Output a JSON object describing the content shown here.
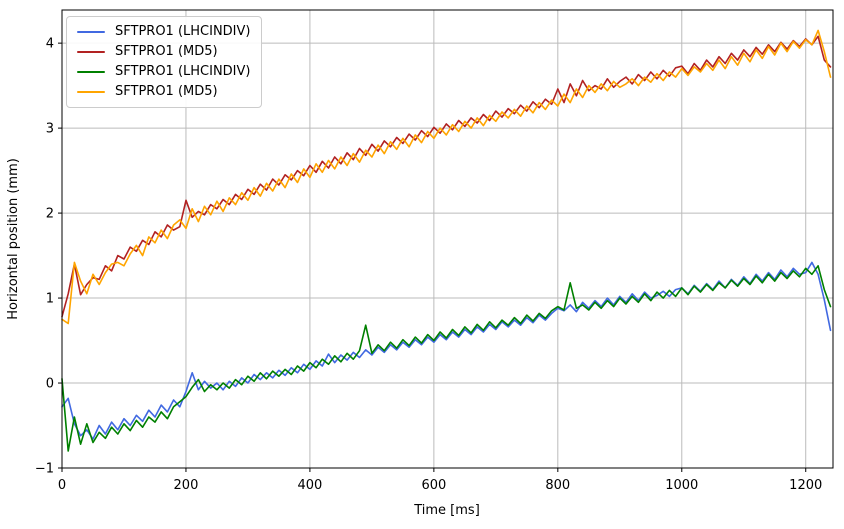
{
  "figure": {
    "background": "#ffffff",
    "text_color": "#000000",
    "spine_color": "#000000"
  },
  "chart_data": {
    "type": "line",
    "title": "",
    "xlabel": "Time [ms]",
    "ylabel": "Horizontal position (mm)",
    "xlim": [
      0,
      1244
    ],
    "ylim": [
      -1.0,
      4.39
    ],
    "xticks": [
      0,
      200,
      400,
      600,
      800,
      1000,
      1200
    ],
    "yticks": [
      -1,
      0,
      1,
      2,
      3,
      4
    ],
    "grid": true,
    "grid_color": "#bbbbbb",
    "legend_position": "upper-left",
    "x": [
      0,
      10,
      20,
      30,
      40,
      50,
      60,
      70,
      80,
      90,
      100,
      110,
      120,
      130,
      140,
      150,
      160,
      170,
      180,
      190,
      200,
      210,
      220,
      230,
      240,
      250,
      260,
      270,
      280,
      290,
      300,
      310,
      320,
      330,
      340,
      350,
      360,
      370,
      380,
      390,
      400,
      410,
      420,
      430,
      440,
      450,
      460,
      470,
      480,
      490,
      500,
      510,
      520,
      530,
      540,
      550,
      560,
      570,
      580,
      590,
      600,
      610,
      620,
      630,
      640,
      650,
      660,
      670,
      680,
      690,
      700,
      710,
      720,
      730,
      740,
      750,
      760,
      770,
      780,
      790,
      800,
      810,
      820,
      830,
      840,
      850,
      860,
      870,
      880,
      890,
      900,
      910,
      920,
      930,
      940,
      950,
      960,
      970,
      980,
      990,
      1000,
      1010,
      1020,
      1030,
      1040,
      1050,
      1060,
      1070,
      1080,
      1090,
      1100,
      1110,
      1120,
      1130,
      1140,
      1150,
      1160,
      1170,
      1180,
      1190,
      1200,
      1210,
      1220,
      1230,
      1240
    ],
    "series": [
      {
        "name": "SFTPRO1 (LHCINDIV)",
        "color": "#4169e1",
        "values": [
          -0.28,
          -0.18,
          -0.48,
          -0.62,
          -0.55,
          -0.66,
          -0.5,
          -0.6,
          -0.46,
          -0.55,
          -0.42,
          -0.5,
          -0.38,
          -0.45,
          -0.32,
          -0.4,
          -0.26,
          -0.34,
          -0.2,
          -0.28,
          -0.1,
          0.12,
          -0.08,
          0.02,
          -0.06,
          0.0,
          -0.08,
          0.02,
          -0.04,
          0.06,
          0.0,
          0.1,
          0.04,
          0.12,
          0.06,
          0.15,
          0.09,
          0.18,
          0.12,
          0.22,
          0.16,
          0.26,
          0.2,
          0.34,
          0.24,
          0.33,
          0.27,
          0.36,
          0.3,
          0.39,
          0.33,
          0.42,
          0.36,
          0.45,
          0.39,
          0.48,
          0.42,
          0.51,
          0.45,
          0.54,
          0.48,
          0.57,
          0.51,
          0.6,
          0.54,
          0.63,
          0.57,
          0.66,
          0.6,
          0.69,
          0.63,
          0.72,
          0.66,
          0.74,
          0.68,
          0.77,
          0.71,
          0.8,
          0.74,
          0.82,
          0.88,
          0.85,
          0.92,
          0.84,
          0.95,
          0.88,
          0.97,
          0.9,
          1.0,
          0.92,
          1.02,
          0.95,
          1.05,
          0.97,
          1.07,
          1.0,
          1.03,
          1.08,
          1.02,
          1.1,
          1.12,
          1.05,
          1.15,
          1.08,
          1.17,
          1.1,
          1.2,
          1.12,
          1.22,
          1.15,
          1.25,
          1.17,
          1.28,
          1.2,
          1.3,
          1.22,
          1.33,
          1.25,
          1.35,
          1.28,
          1.3,
          1.42,
          1.28,
          0.98,
          0.62
        ]
      },
      {
        "name": "SFTPRO1 (MD5)",
        "color": "#b22222",
        "values": [
          0.78,
          1.05,
          1.4,
          1.04,
          1.16,
          1.24,
          1.22,
          1.38,
          1.32,
          1.5,
          1.46,
          1.6,
          1.55,
          1.68,
          1.63,
          1.78,
          1.72,
          1.86,
          1.8,
          1.84,
          2.15,
          1.95,
          2.02,
          1.98,
          2.1,
          2.05,
          2.16,
          2.1,
          2.22,
          2.16,
          2.28,
          2.22,
          2.34,
          2.27,
          2.4,
          2.33,
          2.45,
          2.39,
          2.5,
          2.44,
          2.56,
          2.48,
          2.61,
          2.53,
          2.66,
          2.58,
          2.71,
          2.63,
          2.76,
          2.68,
          2.81,
          2.73,
          2.85,
          2.78,
          2.89,
          2.82,
          2.93,
          2.86,
          2.97,
          2.9,
          3.01,
          2.94,
          3.05,
          2.98,
          3.09,
          3.02,
          3.12,
          3.06,
          3.16,
          3.09,
          3.2,
          3.13,
          3.23,
          3.17,
          3.27,
          3.2,
          3.31,
          3.24,
          3.34,
          3.28,
          3.46,
          3.3,
          3.52,
          3.38,
          3.56,
          3.44,
          3.5,
          3.46,
          3.58,
          3.48,
          3.55,
          3.6,
          3.52,
          3.63,
          3.56,
          3.66,
          3.58,
          3.68,
          3.61,
          3.71,
          3.73,
          3.64,
          3.76,
          3.68,
          3.8,
          3.72,
          3.84,
          3.76,
          3.88,
          3.8,
          3.92,
          3.84,
          3.95,
          3.87,
          3.98,
          3.9,
          4.01,
          3.93,
          4.03,
          3.96,
          4.05,
          3.98,
          4.08,
          3.8,
          3.72
        ]
      },
      {
        "name": "SFTPRO1 (LHCINDIV)",
        "color": "#008000",
        "values": [
          0.05,
          -0.8,
          -0.4,
          -0.72,
          -0.48,
          -0.7,
          -0.58,
          -0.65,
          -0.52,
          -0.6,
          -0.48,
          -0.56,
          -0.44,
          -0.52,
          -0.4,
          -0.46,
          -0.34,
          -0.42,
          -0.28,
          -0.22,
          -0.16,
          -0.05,
          0.04,
          -0.1,
          -0.02,
          -0.08,
          0.0,
          -0.06,
          0.04,
          -0.02,
          0.08,
          0.02,
          0.12,
          0.05,
          0.14,
          0.08,
          0.16,
          0.1,
          0.2,
          0.14,
          0.24,
          0.18,
          0.28,
          0.22,
          0.32,
          0.25,
          0.35,
          0.28,
          0.38,
          0.68,
          0.35,
          0.45,
          0.38,
          0.48,
          0.41,
          0.51,
          0.44,
          0.54,
          0.47,
          0.57,
          0.5,
          0.6,
          0.53,
          0.63,
          0.56,
          0.66,
          0.59,
          0.69,
          0.62,
          0.72,
          0.65,
          0.74,
          0.68,
          0.77,
          0.7,
          0.8,
          0.73,
          0.82,
          0.76,
          0.85,
          0.9,
          0.86,
          1.18,
          0.88,
          0.92,
          0.86,
          0.95,
          0.88,
          0.97,
          0.9,
          1.0,
          0.93,
          1.02,
          0.95,
          1.05,
          0.97,
          1.07,
          1.0,
          1.09,
          1.02,
          1.12,
          1.04,
          1.14,
          1.07,
          1.16,
          1.09,
          1.18,
          1.12,
          1.21,
          1.14,
          1.23,
          1.16,
          1.26,
          1.18,
          1.28,
          1.2,
          1.3,
          1.23,
          1.32,
          1.25,
          1.35,
          1.28,
          1.38,
          1.1,
          0.9
        ]
      },
      {
        "name": "SFTPRO1 (MD5)",
        "color": "#ffa500",
        "values": [
          0.75,
          0.7,
          1.42,
          1.2,
          1.05,
          1.28,
          1.16,
          1.3,
          1.4,
          1.42,
          1.38,
          1.52,
          1.62,
          1.5,
          1.72,
          1.65,
          1.8,
          1.7,
          1.86,
          1.92,
          1.82,
          2.05,
          1.9,
          2.08,
          1.98,
          2.14,
          2.02,
          2.18,
          2.1,
          2.24,
          2.15,
          2.3,
          2.2,
          2.35,
          2.26,
          2.4,
          2.3,
          2.46,
          2.36,
          2.52,
          2.42,
          2.58,
          2.48,
          2.62,
          2.52,
          2.66,
          2.56,
          2.7,
          2.6,
          2.74,
          2.66,
          2.8,
          2.7,
          2.84,
          2.75,
          2.88,
          2.78,
          2.92,
          2.83,
          2.96,
          2.88,
          3.0,
          2.92,
          3.04,
          2.96,
          3.08,
          3.0,
          3.12,
          3.03,
          3.15,
          3.08,
          3.19,
          3.12,
          3.22,
          3.14,
          3.26,
          3.18,
          3.3,
          3.22,
          3.33,
          3.26,
          3.4,
          3.3,
          3.46,
          3.36,
          3.5,
          3.42,
          3.52,
          3.44,
          3.55,
          3.48,
          3.52,
          3.58,
          3.5,
          3.6,
          3.54,
          3.64,
          3.56,
          3.66,
          3.6,
          3.7,
          3.62,
          3.72,
          3.66,
          3.76,
          3.68,
          3.8,
          3.7,
          3.84,
          3.74,
          3.88,
          3.78,
          3.92,
          3.82,
          3.96,
          3.86,
          4.0,
          3.9,
          4.02,
          3.94,
          4.04,
          3.98,
          4.15,
          3.9,
          3.6
        ]
      }
    ]
  }
}
